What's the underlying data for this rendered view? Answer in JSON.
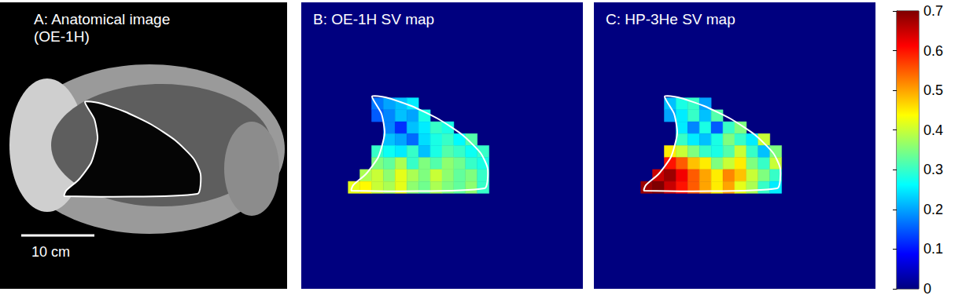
{
  "chart_data": [
    {
      "type": "image",
      "title": "A: Anatomical image",
      "subtitle": "(OE-1H)",
      "scale_bar": "10 cm"
    },
    {
      "type": "heatmap",
      "title": "B: OE-1H SV map",
      "xlim": [
        0,
        24
      ],
      "ylim": [
        0,
        24
      ],
      "tick_labels": false,
      "cells": [
        [
          6,
          8,
          0.17
        ],
        [
          7,
          8,
          0.2
        ],
        [
          8,
          8,
          0.22
        ],
        [
          9,
          8,
          0.25
        ],
        [
          6,
          9,
          0.15
        ],
        [
          7,
          9,
          0.18
        ],
        [
          8,
          9,
          0.22
        ],
        [
          9,
          9,
          0.2
        ],
        [
          10,
          9,
          0.28
        ],
        [
          7,
          10,
          0.18
        ],
        [
          8,
          10,
          0.12
        ],
        [
          9,
          10,
          0.22
        ],
        [
          10,
          10,
          0.25
        ],
        [
          11,
          10,
          0.3
        ],
        [
          12,
          10,
          0.28
        ],
        [
          7,
          11,
          0.22
        ],
        [
          8,
          11,
          0.2
        ],
        [
          9,
          11,
          0.16
        ],
        [
          10,
          11,
          0.24
        ],
        [
          11,
          11,
          0.28
        ],
        [
          12,
          11,
          0.3
        ],
        [
          13,
          11,
          0.26
        ],
        [
          14,
          11,
          0.32
        ],
        [
          6,
          12,
          0.3
        ],
        [
          7,
          12,
          0.27
        ],
        [
          8,
          12,
          0.25
        ],
        [
          9,
          12,
          0.3
        ],
        [
          10,
          12,
          0.22
        ],
        [
          11,
          12,
          0.28
        ],
        [
          12,
          12,
          0.32
        ],
        [
          13,
          12,
          0.3
        ],
        [
          14,
          12,
          0.27
        ],
        [
          15,
          12,
          0.3
        ],
        [
          6,
          13,
          0.35
        ],
        [
          7,
          13,
          0.33
        ],
        [
          8,
          13,
          0.38
        ],
        [
          9,
          13,
          0.3
        ],
        [
          10,
          13,
          0.35
        ],
        [
          11,
          13,
          0.32
        ],
        [
          12,
          13,
          0.36
        ],
        [
          13,
          13,
          0.34
        ],
        [
          14,
          13,
          0.3
        ],
        [
          15,
          13,
          0.28
        ],
        [
          5,
          14,
          0.38
        ],
        [
          6,
          14,
          0.4
        ],
        [
          7,
          14,
          0.36
        ],
        [
          8,
          14,
          0.42
        ],
        [
          9,
          14,
          0.38
        ],
        [
          10,
          14,
          0.35
        ],
        [
          11,
          14,
          0.4
        ],
        [
          12,
          14,
          0.36
        ],
        [
          13,
          14,
          0.33
        ],
        [
          14,
          14,
          0.35
        ],
        [
          15,
          14,
          0.3
        ],
        [
          4,
          15,
          0.42
        ],
        [
          5,
          15,
          0.44
        ],
        [
          6,
          15,
          0.4
        ],
        [
          7,
          15,
          0.38
        ],
        [
          8,
          15,
          0.42
        ],
        [
          9,
          15,
          0.36
        ],
        [
          10,
          15,
          0.34
        ],
        [
          11,
          15,
          0.38
        ],
        [
          12,
          15,
          0.35
        ],
        [
          13,
          15,
          0.33
        ],
        [
          14,
          15,
          0.36
        ],
        [
          15,
          15,
          0.3
        ]
      ]
    },
    {
      "type": "heatmap",
      "title": "C: HP-3He SV map",
      "xlim": [
        0,
        24
      ],
      "ylim": [
        0,
        24
      ],
      "tick_labels": false,
      "cells": [
        [
          6,
          8,
          0.22
        ],
        [
          7,
          8,
          0.28
        ],
        [
          8,
          8,
          0.3
        ],
        [
          9,
          8,
          0.2
        ],
        [
          6,
          9,
          0.2
        ],
        [
          7,
          9,
          0.25
        ],
        [
          8,
          9,
          0.3
        ],
        [
          9,
          9,
          0.22
        ],
        [
          10,
          9,
          0.32
        ],
        [
          7,
          10,
          0.25
        ],
        [
          8,
          10,
          0.18
        ],
        [
          9,
          10,
          0.28
        ],
        [
          10,
          10,
          0.15
        ],
        [
          11,
          10,
          0.3
        ],
        [
          12,
          10,
          0.35
        ],
        [
          7,
          11,
          0.3
        ],
        [
          8,
          11,
          0.25
        ],
        [
          9,
          11,
          0.22
        ],
        [
          10,
          11,
          0.28
        ],
        [
          11,
          11,
          0.35
        ],
        [
          12,
          11,
          0.3
        ],
        [
          13,
          11,
          0.25
        ],
        [
          14,
          11,
          0.4
        ],
        [
          6,
          12,
          0.45
        ],
        [
          7,
          12,
          0.4
        ],
        [
          8,
          12,
          0.35
        ],
        [
          9,
          12,
          0.3
        ],
        [
          10,
          12,
          0.28
        ],
        [
          11,
          12,
          0.32
        ],
        [
          12,
          12,
          0.4
        ],
        [
          13,
          12,
          0.3
        ],
        [
          14,
          12,
          0.22
        ],
        [
          15,
          12,
          0.35
        ],
        [
          6,
          13,
          0.6
        ],
        [
          7,
          13,
          0.55
        ],
        [
          8,
          13,
          0.48
        ],
        [
          9,
          13,
          0.45
        ],
        [
          10,
          13,
          0.35
        ],
        [
          11,
          13,
          0.4
        ],
        [
          12,
          13,
          0.45
        ],
        [
          13,
          13,
          0.35
        ],
        [
          14,
          13,
          0.3
        ],
        [
          15,
          13,
          0.4
        ],
        [
          5,
          14,
          0.65
        ],
        [
          6,
          14,
          0.68
        ],
        [
          7,
          14,
          0.62
        ],
        [
          8,
          14,
          0.55
        ],
        [
          9,
          14,
          0.5
        ],
        [
          10,
          14,
          0.45
        ],
        [
          11,
          14,
          0.52
        ],
        [
          12,
          14,
          0.48
        ],
        [
          13,
          14,
          0.4
        ],
        [
          14,
          14,
          0.35
        ],
        [
          15,
          14,
          0.3
        ],
        [
          4,
          15,
          0.68
        ],
        [
          5,
          15,
          0.7
        ],
        [
          6,
          15,
          0.65
        ],
        [
          7,
          15,
          0.6
        ],
        [
          8,
          15,
          0.55
        ],
        [
          9,
          15,
          0.5
        ],
        [
          10,
          15,
          0.45
        ],
        [
          11,
          15,
          0.5
        ],
        [
          12,
          15,
          0.42
        ],
        [
          13,
          15,
          0.38
        ],
        [
          14,
          15,
          0.3
        ],
        [
          15,
          15,
          0.25
        ]
      ],
      "colorbar": {
        "range": [
          0,
          0.7
        ],
        "ticks": [
          0,
          0.1,
          0.2,
          0.3,
          0.4,
          0.5,
          0.6,
          0.7
        ]
      }
    }
  ]
}
